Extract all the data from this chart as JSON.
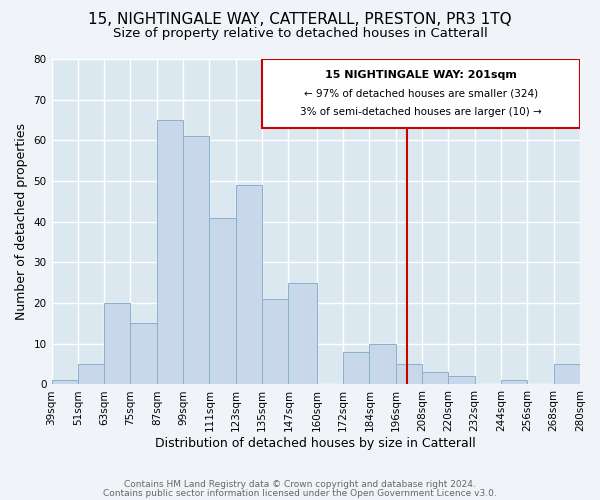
{
  "title1": "15, NIGHTINGALE WAY, CATTERALL, PRESTON, PR3 1TQ",
  "title2": "Size of property relative to detached houses in Catterall",
  "xlabel": "Distribution of detached houses by size in Catterall",
  "ylabel": "Number of detached properties",
  "footer1": "Contains HM Land Registry data © Crown copyright and database right 2024.",
  "footer2": "Contains public sector information licensed under the Open Government Licence v3.0.",
  "bin_labels": [
    "39sqm",
    "51sqm",
    "63sqm",
    "75sqm",
    "87sqm",
    "99sqm",
    "111sqm",
    "123sqm",
    "135sqm",
    "147sqm",
    "160sqm",
    "172sqm",
    "184sqm",
    "196sqm",
    "208sqm",
    "220sqm",
    "232sqm",
    "244sqm",
    "256sqm",
    "268sqm",
    "280sqm"
  ],
  "bin_edges": [
    39,
    51,
    63,
    75,
    87,
    99,
    111,
    123,
    135,
    147,
    160,
    172,
    184,
    196,
    208,
    220,
    232,
    244,
    256,
    268,
    280
  ],
  "bar_heights": [
    1,
    5,
    20,
    15,
    65,
    61,
    41,
    49,
    21,
    25,
    0,
    8,
    10,
    5,
    3,
    2,
    0,
    1,
    0,
    5,
    0
  ],
  "bar_color": "#c8d8ea",
  "bar_edge_color": "#8ab0cc",
  "vline_x": 201,
  "vline_color": "#cc0000",
  "annotation_title": "15 NIGHTINGALE WAY: 201sqm",
  "annotation_line1": "← 97% of detached houses are smaller (324)",
  "annotation_line2": "3% of semi-detached houses are larger (10) →",
  "annotation_box_color": "#ffffff",
  "annotation_box_edge": "#cc0000",
  "ylim": [
    0,
    80
  ],
  "yticks": [
    0,
    10,
    20,
    30,
    40,
    50,
    60,
    70,
    80
  ],
  "plot_bg_color": "#dce8f0",
  "fig_bg_color": "#f0f4f8",
  "grid_color": "#ffffff",
  "title1_fontsize": 11,
  "title2_fontsize": 9.5,
  "axis_label_fontsize": 9,
  "tick_fontsize": 7.5,
  "footer_fontsize": 6.5
}
